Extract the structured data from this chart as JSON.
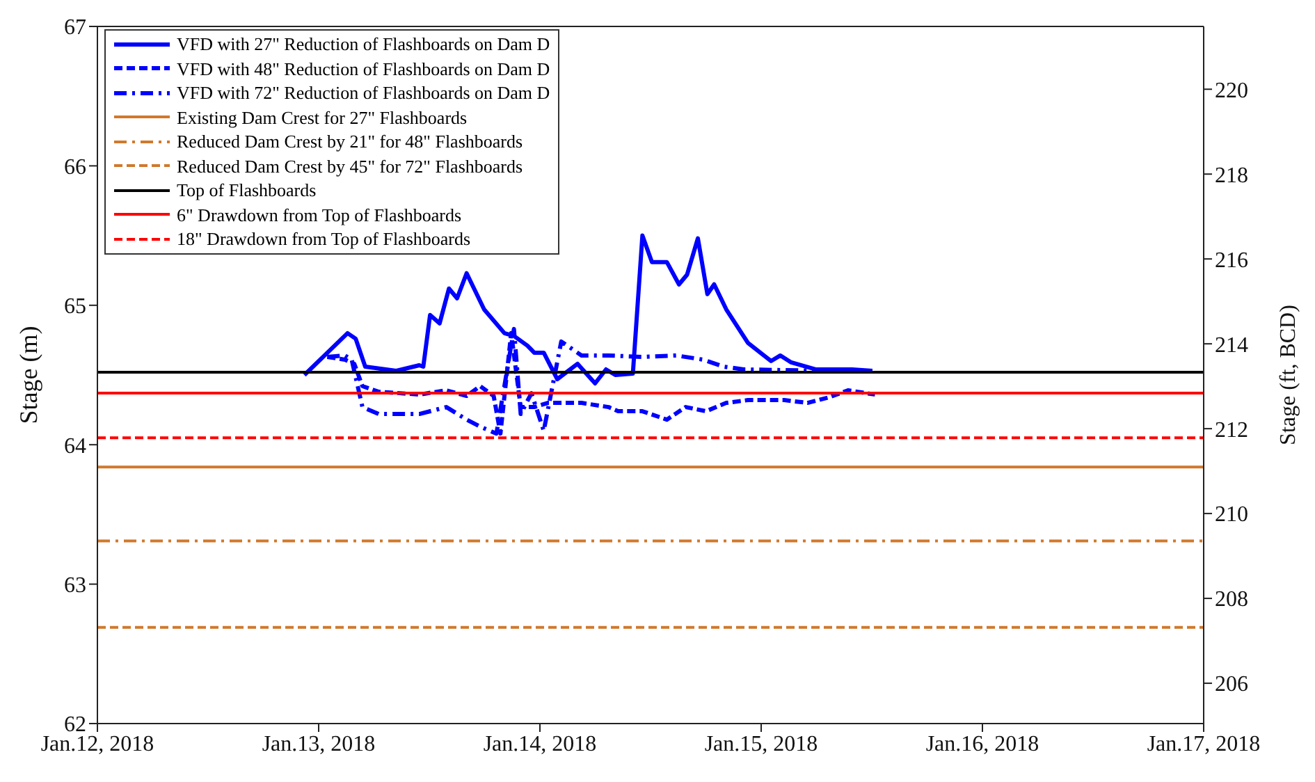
{
  "chart_data": {
    "type": "line",
    "ylabel": "Stage (m)",
    "y2label": "Stage (ft, BCD)",
    "xlim": [
      "2018-01-12",
      "2018-01-17"
    ],
    "xticks": [
      {
        "value": "2018-01-12",
        "label": "Jan.12, 2018"
      },
      {
        "value": "2018-01-13",
        "label": "Jan.13, 2018"
      },
      {
        "value": "2018-01-14",
        "label": "Jan.14, 2018"
      },
      {
        "value": "2018-01-15",
        "label": "Jan.15, 2018"
      },
      {
        "value": "2018-01-16",
        "label": "Jan.16, 2018"
      },
      {
        "value": "2018-01-17",
        "label": "Jan.17, 2018"
      }
    ],
    "ylim": [
      62,
      67
    ],
    "yticks": [
      62,
      63,
      64,
      65,
      66,
      67
    ],
    "y2lim": [
      205.05,
      221.48
    ],
    "y2ticks": [
      206,
      208,
      210,
      212,
      214,
      216,
      218,
      220
    ],
    "legend": "top left",
    "marker": "none",
    "series": [
      {
        "name": "VFD with 27\" Reduction of Flashboards on Dam D",
        "color": "#0000ff",
        "line_style": "solid",
        "x": [
          "2018-01-12T22:27",
          "2018-01-13T03:08",
          "2018-01-13T04:01",
          "2018-01-13T05:03",
          "2018-01-13T08:25",
          "2018-01-13T10:55",
          "2018-01-13T11:21",
          "2018-01-13T12:05",
          "2018-01-13T13:07",
          "2018-01-13T14:08",
          "2018-01-13T15:01",
          "2018-01-13T16:03",
          "2018-01-13T17:57",
          "2018-01-13T20:09",
          "2018-01-13T21:11",
          "2018-01-13T22:39",
          "2018-01-13T23:23",
          "2018-01-14T00:25",
          "2018-01-14T01:53",
          "2018-01-14T04:05",
          "2018-01-14T05:59",
          "2018-01-14T07:10",
          "2018-01-14T08:11",
          "2018-01-14T10:05",
          "2018-01-14T11:07",
          "2018-01-14T12:09",
          "2018-01-14T13:46",
          "2018-01-14T15:05",
          "2018-01-14T15:58",
          "2018-01-14T17:08",
          "2018-01-14T18:10",
          "2018-01-14T18:54",
          "2018-01-14T20:13",
          "2018-01-14T22:34",
          "2018-01-15T01:04",
          "2018-01-15T02:05",
          "2018-01-15T03:16",
          "2018-01-15T05:54",
          "2018-01-15T09:52",
          "2018-01-15T12:04"
        ],
        "values": [
          64.5,
          64.8,
          64.76,
          64.56,
          64.53,
          64.57,
          64.56,
          64.93,
          64.87,
          65.12,
          65.05,
          65.23,
          64.97,
          64.8,
          64.78,
          64.71,
          64.66,
          64.66,
          64.47,
          64.58,
          64.44,
          64.54,
          64.5,
          64.51,
          65.5,
          65.31,
          65.31,
          65.15,
          65.22,
          65.48,
          65.08,
          65.15,
          64.97,
          64.73,
          64.6,
          64.64,
          64.59,
          64.54,
          64.54,
          64.53
        ]
      },
      {
        "name": "VFD with 48\" Reduction of Flashboards on Dam D",
        "color": "#0000ff",
        "line_style": "dashed",
        "x": [
          "2018-01-13T00:56",
          "2018-01-13T02:51",
          "2018-01-13T03:52",
          "2018-01-13T04:45",
          "2018-01-13T06:31",
          "2018-01-13T10:55",
          "2018-01-13T13:51",
          "2018-01-13T16:03",
          "2018-01-13T17:31",
          "2018-01-13T18:59",
          "2018-01-13T19:43",
          "2018-01-13T20:53",
          "2018-01-13T21:55",
          "2018-01-13T23:23",
          "2018-01-14T00:51",
          "2018-01-14T04:31",
          "2018-01-14T07:27",
          "2018-01-14T08:29",
          "2018-01-14T11:07",
          "2018-01-14T13:46",
          "2018-01-14T15:49",
          "2018-01-14T18:01",
          "2018-01-14T20:13",
          "2018-01-14T22:34",
          "2018-01-15T02:31",
          "2018-01-15T05:01",
          "2018-01-15T07:22",
          "2018-01-15T09:25",
          "2018-01-15T12:21"
        ],
        "values": [
          64.63,
          64.61,
          64.58,
          64.42,
          64.38,
          64.36,
          64.39,
          64.35,
          64.42,
          64.35,
          64.08,
          64.8,
          64.27,
          64.27,
          64.3,
          64.3,
          64.27,
          64.24,
          64.24,
          64.18,
          64.27,
          64.24,
          64.3,
          64.32,
          64.32,
          64.3,
          64.34,
          64.39,
          64.36
        ]
      },
      {
        "name": "VFD with 72\" Reduction of Flashboards on Dam D",
        "color": "#0000ff",
        "line_style": "dashdot",
        "x": [
          "2018-01-13T00:56",
          "2018-01-13T02:51",
          "2018-01-13T03:35",
          "2018-01-13T04:45",
          "2018-01-13T06:31",
          "2018-01-13T10:55",
          "2018-01-13T13:51",
          "2018-01-13T16:03",
          "2018-01-13T17:31",
          "2018-01-13T19:17",
          "2018-01-13T21:11",
          "2018-01-13T21:55",
          "2018-01-13T23:05",
          "2018-01-14T00:25",
          "2018-01-14T02:19",
          "2018-01-14T04:31",
          "2018-01-14T07:27",
          "2018-01-14T11:07",
          "2018-01-14T14:47",
          "2018-01-14T17:43",
          "2018-01-14T19:55",
          "2018-01-14T22:07",
          "2018-01-15T06:55",
          "2018-01-15T12:04"
        ],
        "values": [
          64.63,
          64.64,
          64.61,
          64.27,
          64.22,
          64.22,
          64.27,
          64.18,
          64.13,
          64.08,
          64.83,
          64.22,
          64.37,
          64.1,
          64.74,
          64.64,
          64.64,
          64.63,
          64.64,
          64.61,
          64.56,
          64.54,
          64.53,
          64.53
        ]
      },
      {
        "name": "Existing Dam Crest for 27\" Flashboards",
        "color": "#d0792c",
        "line_style": "solid",
        "x": [
          "2018-01-12",
          "2018-01-17"
        ],
        "values": [
          63.84,
          63.84
        ]
      },
      {
        "name": "Reduced Dam Crest by 21\" for 48\" Flashboards",
        "color": "#d0792c",
        "line_style": "dashdot",
        "x": [
          "2018-01-12",
          "2018-01-17"
        ],
        "values": [
          63.31,
          63.31
        ]
      },
      {
        "name": "Reduced Dam Crest by 45\" for 72\" Flashboards",
        "color": "#d0792c",
        "line_style": "dashed",
        "x": [
          "2018-01-12",
          "2018-01-17"
        ],
        "values": [
          62.69,
          62.69
        ]
      },
      {
        "name": "Top of Flashboards",
        "color": "#000000",
        "line_style": "solid",
        "x": [
          "2018-01-12",
          "2018-01-17"
        ],
        "values": [
          64.52,
          64.52
        ]
      },
      {
        "name": "6\" Drawdown from Top of Flashboards",
        "color": "#ff0000",
        "line_style": "solid",
        "x": [
          "2018-01-12",
          "2018-01-17"
        ],
        "values": [
          64.37,
          64.37
        ]
      },
      {
        "name": "18\" Drawdown from Top of Flashboards",
        "color": "#ff0000",
        "line_style": "dashed",
        "x": [
          "2018-01-12",
          "2018-01-17"
        ],
        "values": [
          64.05,
          64.05
        ]
      }
    ]
  }
}
